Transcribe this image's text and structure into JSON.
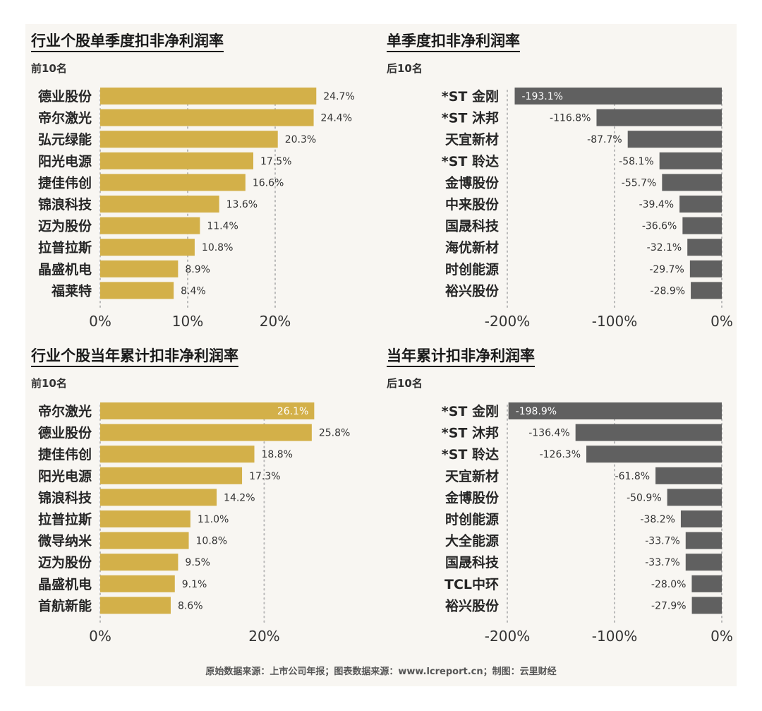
{
  "colors": {
    "positive_bar": "#d3b049",
    "negative_bar": "#606060",
    "grid": "#b9b9b9"
  },
  "source_note": "原始数据来源：上市公司年报；图表数据来源：www.lcreport.cn；制图：云里财经",
  "chart_data": [
    {
      "type": "bar",
      "orientation": "horizontal",
      "title": "行业个股单季度扣非净利润率",
      "subtitle": "前10名",
      "categories": [
        "德业股份",
        "帝尔激光",
        "弘元绿能",
        "阳光电源",
        "捷佳伟创",
        "锦浪科技",
        "迈为股份",
        "拉普拉斯",
        "晶盛机电",
        "福莱特"
      ],
      "values": [
        24.7,
        24.4,
        20.3,
        17.5,
        16.6,
        13.6,
        11.4,
        10.8,
        8.9,
        8.4
      ],
      "value_labels": [
        "24.7%",
        "24.4%",
        "20.3%",
        "17.5%",
        "16.6%",
        "13.6%",
        "11.4%",
        "10.8%",
        "8.9%",
        "8.4%"
      ],
      "xlim": [
        0,
        25
      ],
      "ticks": [
        0,
        10,
        20
      ],
      "tick_labels": [
        "0%",
        "10%",
        "20%"
      ],
      "grid": true
    },
    {
      "type": "bar",
      "orientation": "horizontal",
      "title": "单季度扣非净利润率",
      "subtitle": "后10名",
      "categories": [
        "*ST 金刚",
        "*ST 沐邦",
        "天宜新材",
        "*ST 聆达",
        "金博股份",
        "中来股份",
        "国晟科技",
        "海优新材",
        "时创能源",
        "裕兴股份"
      ],
      "values": [
        -193.1,
        -116.8,
        -87.7,
        -58.1,
        -55.7,
        -39.4,
        -36.6,
        -32.1,
        -29.7,
        -28.9
      ],
      "value_labels": [
        "-193.1%",
        "-116.8%",
        "-87.7%",
        "-58.1%",
        "-55.7%",
        "-39.4%",
        "-36.6%",
        "-32.1%",
        "-29.7%",
        "-28.9%"
      ],
      "xlim": [
        -200,
        0
      ],
      "ticks": [
        -200,
        -100,
        0
      ],
      "tick_labels": [
        "-200%",
        "-100%",
        "0%"
      ],
      "grid": true
    },
    {
      "type": "bar",
      "orientation": "horizontal",
      "title": "行业个股当年累计扣非净利润率",
      "subtitle": "前10名",
      "categories": [
        "帝尔激光",
        "德业股份",
        "捷佳伟创",
        "阳光电源",
        "锦浪科技",
        "拉普拉斯",
        "微导纳米",
        "迈为股份",
        "晶盛机电",
        "首航新能"
      ],
      "values": [
        26.1,
        25.8,
        18.8,
        17.3,
        14.2,
        11.0,
        10.8,
        9.5,
        9.1,
        8.6
      ],
      "value_labels": [
        "26.1%",
        "25.8%",
        "18.8%",
        "17.3%",
        "14.2%",
        "11.0%",
        "10.8%",
        "9.5%",
        "9.1%",
        "8.6%"
      ],
      "xlim": [
        0,
        26.5
      ],
      "ticks": [
        0,
        20
      ],
      "tick_labels": [
        "0%",
        "20%"
      ],
      "grid": true
    },
    {
      "type": "bar",
      "orientation": "horizontal",
      "title": "当年累计扣非净利润率",
      "subtitle": "后10名",
      "categories": [
        "*ST 金刚",
        "*ST 沐邦",
        "*ST 聆达",
        "天宜新材",
        "金博股份",
        "时创能源",
        "大全能源",
        "国晟科技",
        "TCL中环",
        "裕兴股份"
      ],
      "values": [
        -198.9,
        -136.4,
        -126.3,
        -61.8,
        -50.9,
        -38.2,
        -33.7,
        -33.7,
        -28.0,
        -27.9
      ],
      "value_labels": [
        "-198.9%",
        "-136.4%",
        "-126.3%",
        "-61.8%",
        "-50.9%",
        "-38.2%",
        "-33.7%",
        "-33.7%",
        "-28.0%",
        "-27.9%"
      ],
      "xlim": [
        -200,
        0
      ],
      "ticks": [
        -200,
        -100,
        0
      ],
      "tick_labels": [
        "-200%",
        "-100%",
        "0%"
      ],
      "grid": true
    }
  ]
}
